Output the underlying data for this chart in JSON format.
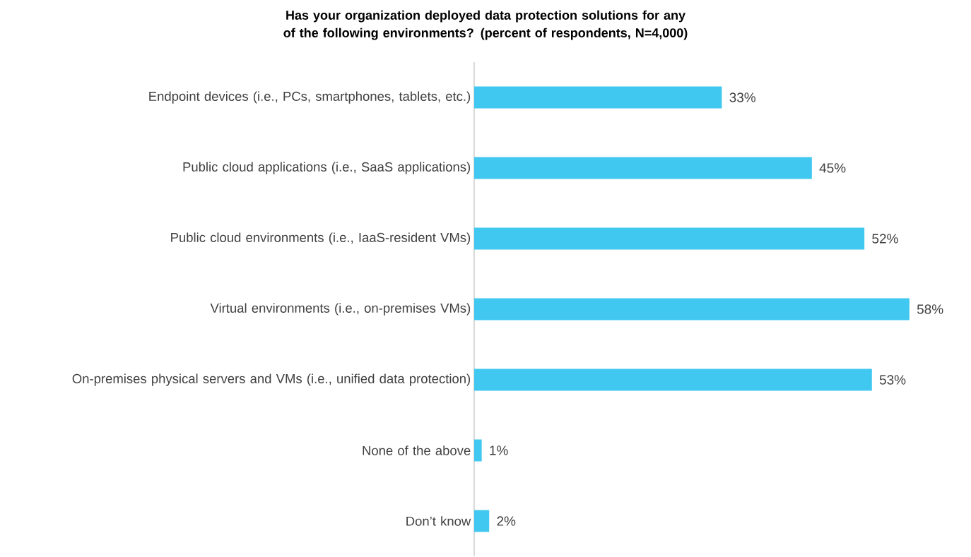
{
  "chart_data": {
    "type": "bar",
    "orientation": "horizontal",
    "title": "Has your organization deployed data protection solutions for any of the following environments? (percent of respondents, N=4,000)",
    "categories": [
      "Endpoint devices (i.e., PCs, smartphones, tablets, etc.)",
      "Public cloud applications (i.e., SaaS applications)",
      "Public cloud environments (i.e., IaaS-resident VMs)",
      "Virtual environments (i.e., on-premises VMs)",
      "On-premises physical servers and VMs (i.e., unified data protection)",
      "None of the above",
      "Don’t know"
    ],
    "values": [
      33,
      45,
      52,
      58,
      53,
      1,
      2
    ],
    "value_labels": [
      "33%",
      "45%",
      "52%",
      "58%",
      "53%",
      "1%",
      "2%"
    ],
    "color": "#40c8f0"
  }
}
